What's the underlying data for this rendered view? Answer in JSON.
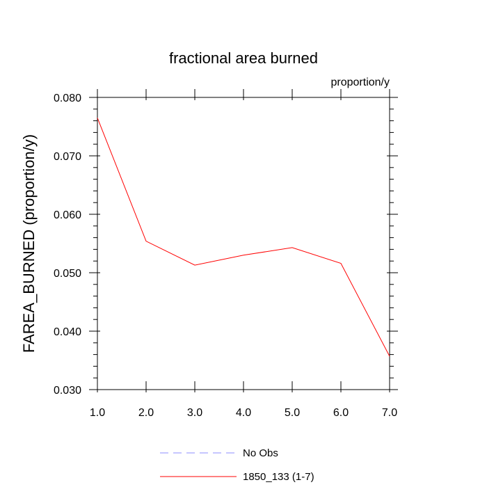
{
  "chart_data": {
    "type": "line",
    "title": "fractional area burned",
    "units_label": "proportion/y",
    "ylabel": "FAREA_BURNED  (proportion/y)",
    "xlabel": "",
    "xlim": [
      1.0,
      7.0
    ],
    "ylim": [
      0.03,
      0.08
    ],
    "x_ticks": [
      1.0,
      2.0,
      3.0,
      4.0,
      5.0,
      6.0,
      7.0
    ],
    "x_tick_labels": [
      "1.0",
      "2.0",
      "3.0",
      "4.0",
      "5.0",
      "6.0",
      "7.0"
    ],
    "y_ticks": [
      0.03,
      0.04,
      0.05,
      0.06,
      0.07,
      0.08
    ],
    "y_tick_labels": [
      "0.030",
      "0.040",
      "0.050",
      "0.060",
      "0.070",
      "0.080"
    ],
    "grid": false,
    "legend_position": "bottom-center",
    "series": [
      {
        "name": "No Obs",
        "color": "#8c8cff",
        "dash": "dashed",
        "x": [],
        "y": []
      },
      {
        "name": "1850_133 (1-7)",
        "color": "#ff0000",
        "dash": "solid",
        "x": [
          1.0,
          2.0,
          3.0,
          4.0,
          5.0,
          6.0,
          7.0
        ],
        "y": [
          0.0765,
          0.0554,
          0.0513,
          0.053,
          0.0543,
          0.0516,
          0.0357
        ]
      }
    ]
  }
}
